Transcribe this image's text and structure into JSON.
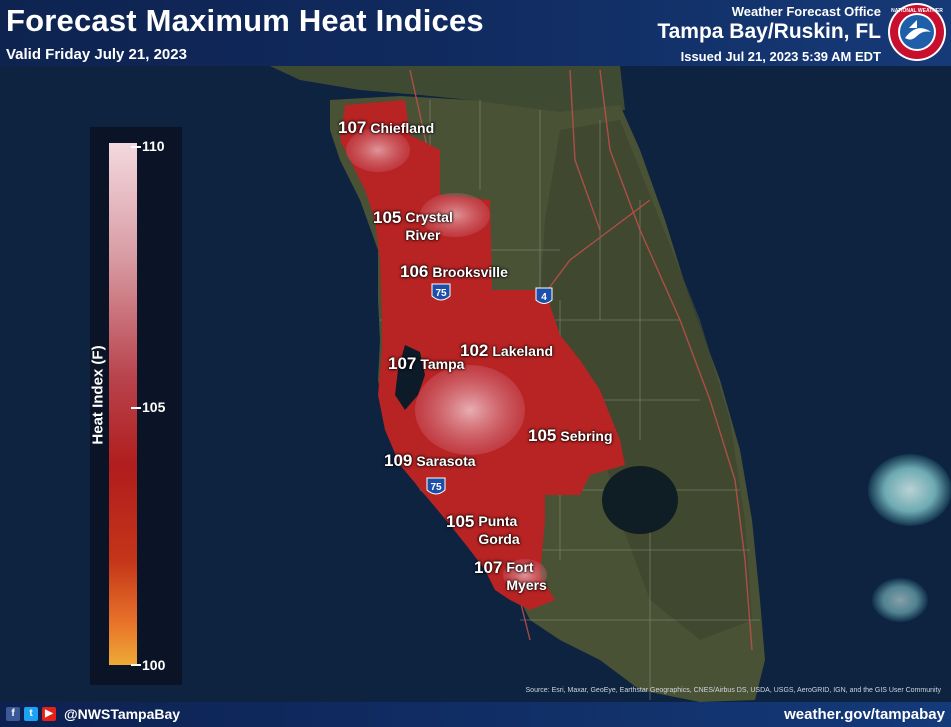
{
  "header": {
    "title": "Forecast Maximum Heat Indices",
    "valid": "Valid Friday July 21, 2023",
    "office_label": "Weather Forecast Office",
    "office_name": "Tampa Bay/Ruskin, FL",
    "issued": "Issued Jul 21, 2023 5:39 AM EDT",
    "logo_text": "NATIONAL WEATHER"
  },
  "legend": {
    "title": "Heat Index (F)",
    "max_label": "110",
    "mid_label": "105",
    "min_label": "100",
    "range": [
      100,
      110
    ],
    "colors": [
      "#f3d9de",
      "#d89ba3",
      "#b8434c",
      "#b01d1d",
      "#c43519",
      "#e8732a",
      "#eeaa36"
    ]
  },
  "cities": [
    {
      "value": "107",
      "name": "Chiefland"
    },
    {
      "value": "105",
      "name": "Crystal\nRiver"
    },
    {
      "value": "106",
      "name": "Brooksville"
    },
    {
      "value": "102",
      "name": "Lakeland"
    },
    {
      "value": "107",
      "name": "Tampa"
    },
    {
      "value": "105",
      "name": "Sebring"
    },
    {
      "value": "109",
      "name": "Sarasota"
    },
    {
      "value": "105",
      "name": "Punta\nGorda"
    },
    {
      "value": "107",
      "name": "Fort\nMyers"
    }
  ],
  "highways": {
    "i75_a": "75",
    "i75_b": "75",
    "i4": "4"
  },
  "footer": {
    "social_icons": [
      "facebook-icon",
      "twitter-icon",
      "youtube-icon"
    ],
    "handle": "@NWSTampaBay",
    "website": "weather.gov/tampabay",
    "source": "Source: Esri, Maxar, GeoEye, Earthstar Geographics, CNES/Airbus DS, USDA, USGS, AeroGRID, IGN, and the GIS User Community"
  }
}
